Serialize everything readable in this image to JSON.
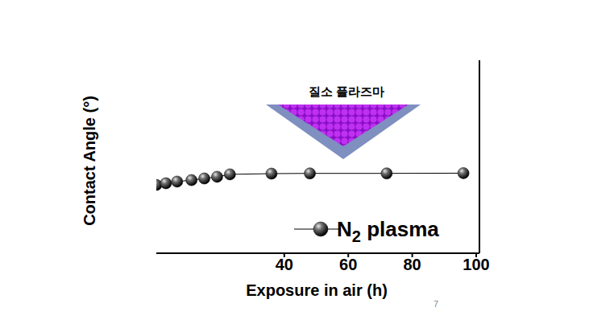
{
  "chart_data": {
    "type": "line",
    "title": "질소 플라즈마",
    "x_label": "Exposure in air (h)",
    "y_label": "Contact Angle (°)",
    "annotations": [
      "7"
    ],
    "x": [
      0,
      3,
      6.5,
      11,
      15,
      19,
      23,
      36,
      48,
      72,
      96
    ],
    "series": [
      {
        "name": "N2 plasma",
        "color": "#000000",
        "marker": "circle",
        "line_style": "solid",
        "values": [
          28.3,
          29,
          29.7,
          30.3,
          31,
          31.7,
          32.7,
          33,
          33.1,
          33.1,
          33.2
        ]
      }
    ],
    "xlim": [
      0,
      101
    ],
    "xticks": [
      40,
      60,
      80,
      100
    ],
    "ylim": [
      0,
      80
    ],
    "grid": false,
    "legend": "bottom",
    "tick_labels": "x"
  }
}
